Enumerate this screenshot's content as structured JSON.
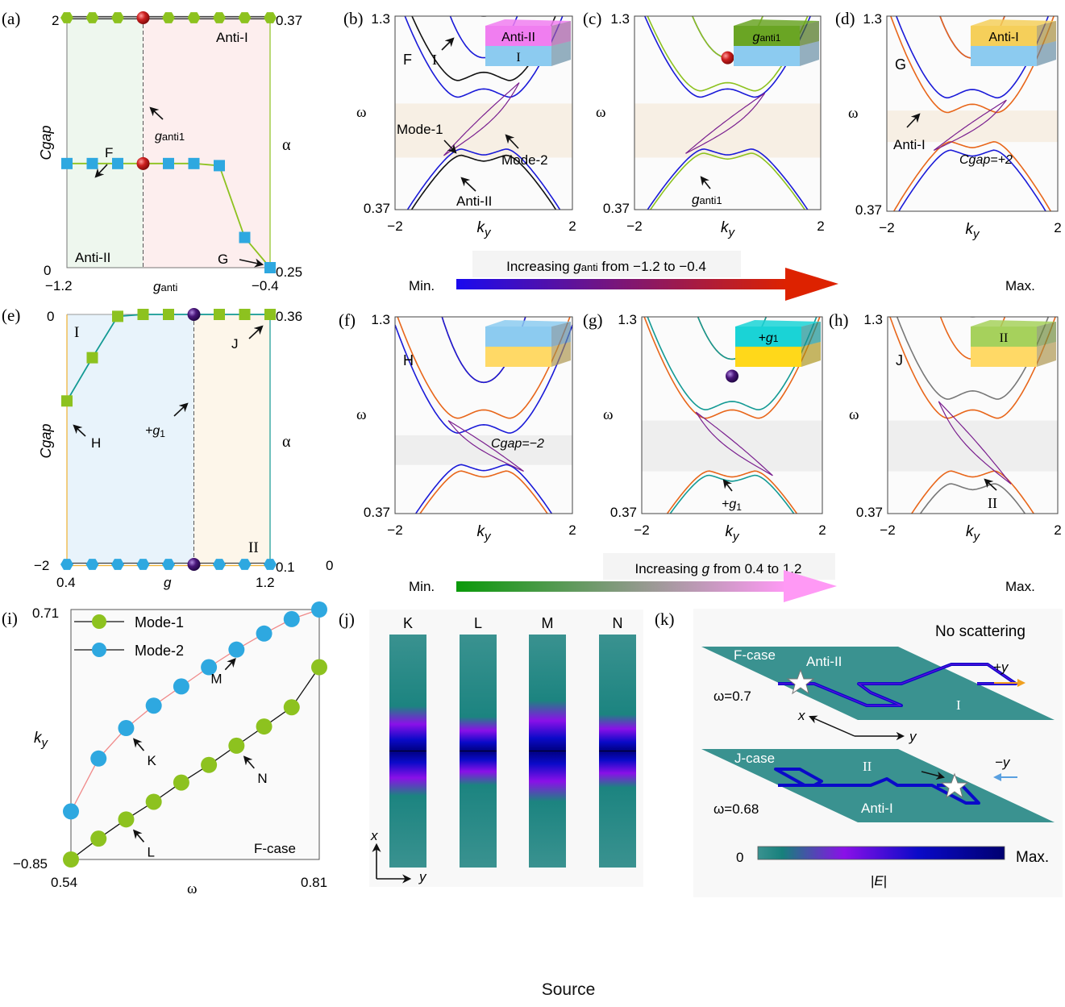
{
  "figure": {
    "source_label": "Source",
    "colors": {
      "blue": "#1a1ad8",
      "black": "#111111",
      "purple": "#7a1f8f",
      "green": "#8dc21f",
      "orange": "#e8661a",
      "teal": "#139a94",
      "gray": "#777777",
      "sky": "#2ea8e0",
      "red_ball": "#cc1f1f",
      "violet_ball": "#4a167a",
      "gap_beige": "#f7efe4",
      "gap_gray": "#eeeeee",
      "field_teal": "#3a9290",
      "field_blue": "#0a0ac8",
      "field_violet": "#8a10e8",
      "field_navy": "#000080"
    }
  },
  "chart_data": [
    {
      "id": "a",
      "panel_label": "(a)",
      "type": "line",
      "xlabel": "g",
      "xlabel_sub": "anti",
      "ylabel": "Cgap",
      "ylabel_right": "α",
      "xlim": [
        -1.2,
        -0.4
      ],
      "x_ticks": [
        "−1.2",
        "−0.4"
      ],
      "y_ticks_left": [
        "0",
        "2"
      ],
      "y_ticks_right": [
        "0.25",
        "0.37"
      ],
      "ylim_left": [
        0,
        2
      ],
      "ylim_right": [
        0.25,
        0.37
      ],
      "regions": [
        {
          "label": "Anti-II",
          "from": -1.2,
          "to": -0.9,
          "color": "#eef7ee"
        },
        {
          "label": "Anti-I",
          "from": -0.9,
          "to": -0.4,
          "color": "#fdeeee"
        }
      ],
      "critical_line": {
        "x": -0.9,
        "label": "g",
        "label_sub": "anti1"
      },
      "series": [
        {
          "name": "Cgap",
          "axis": "left",
          "marker": "hexagon",
          "color": "#8dc21f",
          "x": [
            -1.2,
            -1.1,
            -1.0,
            -0.9,
            -0.8,
            -0.7,
            -0.6,
            -0.5,
            -0.4
          ],
          "y": [
            2,
            2,
            2,
            2,
            2,
            2,
            2,
            2,
            2
          ]
        },
        {
          "name": "alpha",
          "axis": "right",
          "marker": "square",
          "color": "#2ea8e0",
          "x": [
            -1.2,
            -1.1,
            -1.0,
            -0.9,
            -0.8,
            -0.7,
            -0.6,
            -0.5,
            -0.4
          ],
          "y": [
            0.3,
            0.3,
            0.3,
            0.3,
            0.3,
            0.3,
            0.299,
            0.2645,
            0.25
          ]
        }
      ],
      "annotations": [
        {
          "text": "F",
          "x": -1.1,
          "series": "alpha"
        },
        {
          "text": "G",
          "x": -0.4,
          "series": "alpha"
        }
      ]
    },
    {
      "id": "b",
      "panel_label": "(b)",
      "type": "line",
      "xlabel": "k",
      "xlabel_sub": "y",
      "ylabel": "ω",
      "xlim": [
        -2,
        2
      ],
      "ylim": [
        0.37,
        1.3
      ],
      "x_ticks": [
        "−2",
        "2"
      ],
      "y_ticks": [
        "0.37",
        "1.3"
      ],
      "gap_band": [
        0.62,
        0.88
      ],
      "gap_color": "#f7efe4",
      "case_label": "F",
      "inset": {
        "top_label": "Anti-II",
        "bottom_label": "I",
        "top_color": "#f07ef0",
        "bottom_color": "#8ccbf0"
      },
      "band_sets": [
        {
          "name": "I",
          "color": "#1a1ad8",
          "gap_low": 0.66,
          "gap_high": 0.9,
          "upper_second_min": 1.1
        },
        {
          "name": "Anti-II",
          "color": "#111111",
          "gap_low": 0.63,
          "gap_high": 0.98,
          "upper_second_min": 1.3
        }
      ],
      "edge_modes": [
        "Mode-1",
        "Mode-2"
      ],
      "annotations": [
        "F",
        "I",
        "Mode-1",
        "Mode-2",
        "Anti-II"
      ]
    },
    {
      "id": "c",
      "panel_label": "(c)",
      "type": "line",
      "xlabel": "k",
      "xlabel_sub": "y",
      "ylabel": "ω",
      "xlim": [
        -2,
        2
      ],
      "ylim": [
        0.37,
        1.3
      ],
      "x_ticks": [
        "−2",
        "2"
      ],
      "y_ticks": [
        "0.37",
        "1.3"
      ],
      "gap_band": [
        0.62,
        0.88
      ],
      "gap_color": "#f7efe4",
      "inset": {
        "top_label": "g",
        "top_label_sub": "anti1",
        "bottom_label": "",
        "top_color": "#6aa524",
        "bottom_color": "#8ccbf0"
      },
      "band_sets": [
        {
          "name": "I",
          "color": "#1a1ad8",
          "gap_low": 0.66,
          "gap_high": 0.9,
          "upper_second_min": 1.1
        },
        {
          "name": "ganti1",
          "color": "#8dc21f",
          "gap_low": 0.64,
          "gap_high": 0.93,
          "upper_second_min": 1.1
        }
      ],
      "degenerate_point": {
        "k": 0,
        "omega": 1.1,
        "color": "#cc1f1f"
      },
      "annotations": [
        "g_anti1"
      ]
    },
    {
      "id": "d",
      "panel_label": "(d)",
      "type": "line",
      "xlabel": "k",
      "xlabel_sub": "y",
      "ylabel": "ω",
      "xlim": [
        -2,
        2
      ],
      "ylim": [
        0.37,
        1.3
      ],
      "x_ticks": [
        "−2",
        "2"
      ],
      "y_ticks": [
        "0.37",
        "1.3"
      ],
      "gap_band": [
        0.7,
        0.85
      ],
      "gap_color": "#f7efe4",
      "case_label": "G",
      "inset": {
        "top_label": "Anti-I",
        "bottom_label": "",
        "top_color": "#f5cf5a",
        "bottom_color": "#8ccbf0"
      },
      "band_sets": [
        {
          "name": "I",
          "color": "#1a1ad8",
          "gap_low": 0.66,
          "gap_high": 0.9,
          "upper_second_min": 1.1
        },
        {
          "name": "Anti-I",
          "color": "#e8661a",
          "gap_low": 0.7,
          "gap_high": 0.83,
          "upper_second_min": 1.1
        }
      ],
      "annotations": [
        "G",
        "Anti-I",
        "Cgap=+2"
      ]
    },
    {
      "id": "e",
      "panel_label": "(e)",
      "type": "line",
      "xlabel": "g",
      "ylabel": "Cgap",
      "ylabel_right": "α",
      "xlim": [
        0.4,
        1.2
      ],
      "x_ticks": [
        "0.4",
        "1.2"
      ],
      "y_ticks_left": [
        "−2",
        "0"
      ],
      "y_ticks_right": [
        "0.1",
        "0.36"
      ],
      "ylim_left": [
        -2,
        0
      ],
      "ylim_right": [
        0.1,
        0.36
      ],
      "extra_tick": "0",
      "regions": [
        {
          "label": "I",
          "from": 0.4,
          "to": 0.9,
          "color": "#e8f3fb"
        },
        {
          "label": "II",
          "from": 0.9,
          "to": 1.2,
          "color": "#fdf6ea"
        }
      ],
      "critical_line": {
        "x": 0.9,
        "label": "+g",
        "label_sub": "1"
      },
      "series": [
        {
          "name": "Cgap",
          "axis": "left",
          "marker": "hexagon",
          "color": "#2ea8e0",
          "x": [
            0.4,
            0.5,
            0.6,
            0.7,
            0.8,
            0.9,
            1.0,
            1.1,
            1.2
          ],
          "y": [
            -2,
            -2,
            -2,
            -2,
            -2,
            -2,
            -2,
            -2,
            -2
          ]
        },
        {
          "name": "alpha",
          "axis": "right",
          "marker": "square",
          "color": "#8dc21f",
          "x": [
            0.4,
            0.5,
            0.6,
            0.7,
            0.8,
            0.9,
            1.0,
            1.1,
            1.2
          ],
          "y": [
            0.27,
            0.315,
            0.358,
            0.36,
            0.36,
            0.36,
            0.36,
            0.36,
            0.36
          ]
        }
      ],
      "annotations": [
        {
          "text": "H",
          "x": 0.4,
          "series": "alpha"
        },
        {
          "text": "J",
          "x": 1.2,
          "series": "alpha"
        }
      ]
    },
    {
      "id": "f",
      "panel_label": "(f)",
      "type": "line",
      "xlabel": "k",
      "xlabel_sub": "y",
      "ylabel": "ω",
      "xlim": [
        -2,
        2
      ],
      "ylim": [
        0.37,
        1.3
      ],
      "x_ticks": [
        "−2",
        "2"
      ],
      "y_ticks": [
        "0.37",
        "1.3"
      ],
      "gap_band": [
        0.6,
        0.74
      ],
      "gap_color": "#eeeeee",
      "case_label": "H",
      "inset": {
        "top_label": "",
        "bottom_label": "",
        "top_color": "#8ccbf0",
        "bottom_color": "#ffd966"
      },
      "band_sets": [
        {
          "name": "II",
          "color": "#e8661a",
          "gap_low": 0.57,
          "gap_high": 0.81,
          "upper_second_min": 0.99
        },
        {
          "name": "H",
          "color": "#1a1ad8",
          "gap_low": 0.6,
          "gap_high": 0.74,
          "upper_second_min": 0.99
        }
      ],
      "annotations": [
        "H",
        "Cgap=−2"
      ]
    },
    {
      "id": "g",
      "panel_label": "(g)",
      "type": "line",
      "xlabel": "k",
      "xlabel_sub": "y",
      "ylabel": "ω",
      "xlim": [
        -2,
        2
      ],
      "ylim": [
        0.37,
        1.3
      ],
      "x_ticks": [
        "−2",
        "2"
      ],
      "y_ticks": [
        "0.37",
        "1.3"
      ],
      "gap_band": [
        0.57,
        0.81
      ],
      "gap_color": "#eeeeee",
      "inset": {
        "top_label": "+g",
        "top_label_sub": "1",
        "bottom_label": "",
        "top_color": "#1ad3d6",
        "bottom_color": "#ffd81a"
      },
      "band_sets": [
        {
          "name": "II",
          "color": "#e8661a",
          "gap_low": 0.57,
          "gap_high": 0.81,
          "upper_second_min": 1.1
        },
        {
          "name": "+g1",
          "color": "#139a94",
          "gap_low": 0.55,
          "gap_high": 0.85,
          "upper_second_min": 1.1
        }
      ],
      "degenerate_point": {
        "k": 0,
        "omega": 1.02,
        "color": "#4a167a"
      },
      "annotations": [
        "+g1"
      ]
    },
    {
      "id": "h",
      "panel_label": "(h)",
      "type": "line",
      "xlabel": "k",
      "xlabel_sub": "y",
      "ylabel": "ω",
      "xlim": [
        -2,
        2
      ],
      "ylim": [
        0.37,
        1.3
      ],
      "x_ticks": [
        "−2",
        "2"
      ],
      "y_ticks": [
        "0.37",
        "1.3"
      ],
      "gap_band": [
        0.57,
        0.81
      ],
      "gap_color": "#eeeeee",
      "case_label": "J",
      "inset": {
        "top_label": "II",
        "bottom_label": "",
        "top_color": "#a6d15c",
        "bottom_color": "#ffd966"
      },
      "band_sets": [
        {
          "name": "II-orange",
          "color": "#e8661a",
          "gap_low": 0.57,
          "gap_high": 0.81,
          "upper_second_min": 1.1
        },
        {
          "name": "II",
          "color": "#777777",
          "gap_low": 0.51,
          "gap_high": 0.9,
          "upper_second_min": 1.3
        }
      ],
      "annotations": [
        "J",
        "II"
      ]
    },
    {
      "id": "i",
      "panel_label": "(i)",
      "type": "line",
      "xlabel": "ω",
      "ylabel": "k",
      "ylabel_sub": "y",
      "xlim": [
        0.54,
        0.81
      ],
      "ylim": [
        -0.85,
        0.71
      ],
      "x_ticks": [
        "0.54",
        "0.81"
      ],
      "y_ticks": [
        "−0.85",
        "0.71"
      ],
      "legend": "top-left",
      "corner_label": "F-case",
      "series": [
        {
          "name": "Mode-1",
          "color": "#8dc21f",
          "line_color": "#111111",
          "x": [
            0.54,
            0.57,
            0.6,
            0.63,
            0.66,
            0.69,
            0.72,
            0.75,
            0.78,
            0.81
          ],
          "y": [
            -0.85,
            -0.72,
            -0.6,
            -0.49,
            -0.37,
            -0.26,
            -0.14,
            -0.02,
            0.1,
            0.35
          ]
        },
        {
          "name": "Mode-2",
          "color": "#2ea8e0",
          "line_color": "#f08a8a",
          "x": [
            0.54,
            0.57,
            0.6,
            0.63,
            0.66,
            0.69,
            0.72,
            0.75,
            0.78,
            0.81
          ],
          "y": [
            -0.55,
            -0.22,
            -0.03,
            0.11,
            0.23,
            0.35,
            0.46,
            0.56,
            0.65,
            0.71
          ]
        }
      ],
      "annotations": [
        {
          "text": "K",
          "series": "Mode-2",
          "index": 2
        },
        {
          "text": "M",
          "series": "Mode-2",
          "index": 6
        },
        {
          "text": "L",
          "series": "Mode-1",
          "index": 2
        },
        {
          "text": "N",
          "series": "Mode-1",
          "index": 6
        }
      ]
    }
  ],
  "ramps": {
    "top": {
      "title_pre": "Increasing ",
      "title_var": "g",
      "title_sub": "anti",
      "title_post": " from −1.2 to −0.4",
      "min": "Min.",
      "max": "Max.",
      "from_color": "#1a0aee",
      "to_color": "#dd2200"
    },
    "bottom": {
      "title_pre": "Increasing ",
      "title_var": "g",
      "title_sub": "",
      "title_post": " from 0.4 to 1.2",
      "min": "Min.",
      "max": "Max.",
      "from_color": "#0a9a0a",
      "to_color": "#ff99f5"
    }
  },
  "panel_j": {
    "label": "(j)",
    "columns": [
      {
        "label": "K",
        "peak_width": 0.55
      },
      {
        "label": "L",
        "peak_width": 0.42
      },
      {
        "label": "M",
        "peak_width": 0.62
      },
      {
        "label": "N",
        "peak_width": 0.45
      }
    ],
    "axis_x": "x",
    "axis_y": "y"
  },
  "panel_k": {
    "label": "(k)",
    "title": "No scattering",
    "top": {
      "case": "F-case",
      "omega": "ω=0.7",
      "upper_region": "Anti-II",
      "lower_region": "I",
      "direction": "+y",
      "arrow_color": "#f0a020"
    },
    "bottom": {
      "case": "J-case",
      "omega": "ω=0.68",
      "upper_region": "II",
      "lower_region": "Anti-I",
      "direction": "−y",
      "arrow_color": "#5aa0e0"
    },
    "axis_x": "x",
    "axis_y": "y",
    "colorbar": {
      "min": "0",
      "max": "Max.",
      "label": "|E|"
    }
  }
}
